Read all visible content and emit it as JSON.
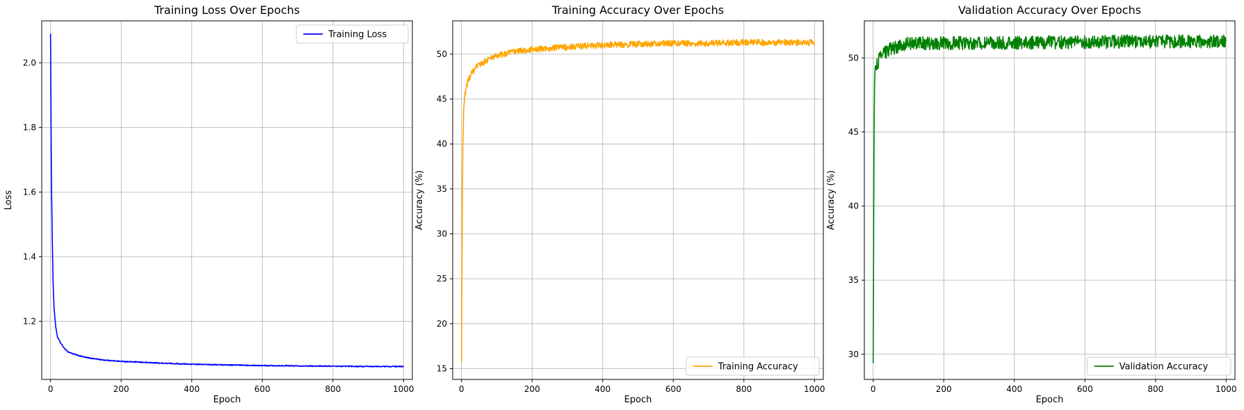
{
  "chart_data": [
    {
      "type": "line",
      "title": "Training Loss Over Epochs",
      "xlabel": "Epoch",
      "ylabel": "Loss",
      "xlim": [
        -25,
        1025
      ],
      "ylim": [
        1.02,
        2.13
      ],
      "xticks": [
        0,
        200,
        400,
        600,
        800,
        1000
      ],
      "yticks": [
        1.2,
        1.4,
        1.6,
        1.8,
        2.0
      ],
      "ytick_labels": [
        "1.2",
        "1.4",
        "1.6",
        "1.8",
        "2.0"
      ],
      "grid": true,
      "legend": "upper right",
      "series": [
        {
          "name": "Training Loss",
          "color": "#0000ff",
          "points": [
            [
              0,
              2.09
            ],
            [
              1,
              1.9
            ],
            [
              2,
              1.72
            ],
            [
              3,
              1.6
            ],
            [
              5,
              1.45
            ],
            [
              7,
              1.33
            ],
            [
              10,
              1.24
            ],
            [
              15,
              1.18
            ],
            [
              20,
              1.15
            ],
            [
              30,
              1.13
            ],
            [
              40,
              1.115
            ],
            [
              50,
              1.105
            ],
            [
              75,
              1.095
            ],
            [
              100,
              1.088
            ],
            [
              150,
              1.08
            ],
            [
              200,
              1.076
            ],
            [
              300,
              1.071
            ],
            [
              400,
              1.067
            ],
            [
              500,
              1.065
            ],
            [
              600,
              1.063
            ],
            [
              700,
              1.062
            ],
            [
              800,
              1.061
            ],
            [
              900,
              1.06
            ],
            [
              1000,
              1.06
            ]
          ],
          "noise": 0.0015
        }
      ]
    },
    {
      "type": "line",
      "title": "Training Accuracy Over Epochs",
      "xlabel": "Epoch",
      "ylabel": "Accuracy (%)",
      "xlim": [
        -25,
        1025
      ],
      "ylim": [
        13.8,
        53.7
      ],
      "xticks": [
        0,
        200,
        400,
        600,
        800,
        1000
      ],
      "yticks": [
        15,
        20,
        25,
        30,
        35,
        40,
        45,
        50
      ],
      "ytick_labels": [
        "15",
        "20",
        "25",
        "30",
        "35",
        "40",
        "45",
        "50"
      ],
      "grid": true,
      "legend": "lower right",
      "series": [
        {
          "name": "Training Accuracy",
          "color": "#ffa500",
          "points": [
            [
              0,
              15.8
            ],
            [
              1,
              24
            ],
            [
              2,
              31
            ],
            [
              3,
              36
            ],
            [
              4,
              40
            ],
            [
              6,
              43.5
            ],
            [
              8,
              44.8
            ],
            [
              10,
              45.5
            ],
            [
              15,
              46.5
            ],
            [
              20,
              47.2
            ],
            [
              30,
              47.9
            ],
            [
              40,
              48.4
            ],
            [
              50,
              48.8
            ],
            [
              75,
              49.4
            ],
            [
              100,
              49.8
            ],
            [
              150,
              50.3
            ],
            [
              200,
              50.5
            ],
            [
              300,
              50.8
            ],
            [
              400,
              51.0
            ],
            [
              500,
              51.1
            ],
            [
              600,
              51.2
            ],
            [
              700,
              51.2
            ],
            [
              800,
              51.3
            ],
            [
              900,
              51.3
            ],
            [
              1000,
              51.3
            ]
          ],
          "noise": 0.35
        }
      ]
    },
    {
      "type": "line",
      "title": "Validation Accuracy Over Epochs",
      "xlabel": "Epoch",
      "ylabel": "Accuracy (%)",
      "xlim": [
        -25,
        1025
      ],
      "ylim": [
        28.3,
        52.5
      ],
      "xticks": [
        0,
        200,
        400,
        600,
        800,
        1000
      ],
      "yticks": [
        30,
        35,
        40,
        45,
        50
      ],
      "ytick_labels": [
        "30",
        "35",
        "40",
        "45",
        "50"
      ],
      "grid": true,
      "legend": "lower right",
      "series": [
        {
          "name": "Validation Accuracy",
          "color": "#008000",
          "points": [
            [
              0,
              29.4
            ],
            [
              1,
              35
            ],
            [
              2,
              42
            ],
            [
              3,
              46
            ],
            [
              4,
              48.5
            ],
            [
              6,
              49.2
            ],
            [
              10,
              49.5
            ],
            [
              15,
              49.8
            ],
            [
              20,
              50.0
            ],
            [
              30,
              50.3
            ],
            [
              50,
              50.6
            ],
            [
              75,
              50.8
            ],
            [
              100,
              51.0
            ],
            [
              150,
              51.0
            ],
            [
              200,
              51.0
            ],
            [
              300,
              51.0
            ],
            [
              400,
              51.0
            ],
            [
              500,
              51.05
            ],
            [
              600,
              51.05
            ],
            [
              700,
              51.1
            ],
            [
              800,
              51.1
            ],
            [
              900,
              51.1
            ],
            [
              1000,
              51.1
            ]
          ],
          "noise": 0.45
        }
      ]
    }
  ]
}
